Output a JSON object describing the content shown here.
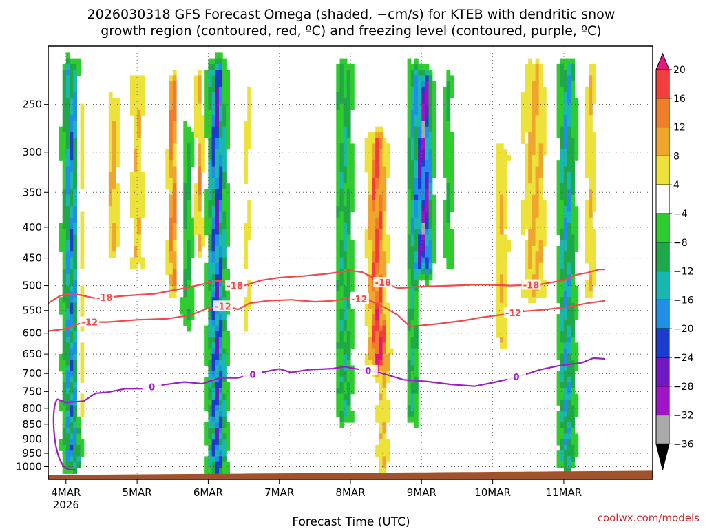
{
  "chart_data": {
    "type": "heatmap",
    "title_line1": "2026030318 GFS Forecast Omega (shaded, −cm/s) for KTEB with dendritic snow",
    "title_line2": "growth region (contoured, red, ºC) and freezing level (contoured, purple, ºC)",
    "xlabel": "Forecast Time (UTC)",
    "credit": "coolwx.com/models",
    "x_range_hours": [
      0,
      204
    ],
    "x_ticks": [
      {
        "hour": 6,
        "label": "4MAR",
        "sublabel": "2026"
      },
      {
        "hour": 30,
        "label": "5MAR"
      },
      {
        "hour": 54,
        "label": "6MAR"
      },
      {
        "hour": 78,
        "label": "7MAR"
      },
      {
        "hour": 102,
        "label": "8MAR"
      },
      {
        "hour": 126,
        "label": "9MAR"
      },
      {
        "hour": 150,
        "label": "10MAR"
      },
      {
        "hour": 174,
        "label": "11MAR"
      }
    ],
    "y_axis": {
      "scale": "log",
      "pressure_range_hpa": [
        1050,
        200
      ],
      "ticks": [
        "250",
        "300",
        "350",
        "400",
        "450",
        "500",
        "550",
        "600",
        "650",
        "700",
        "750",
        "800",
        "850",
        "900",
        "950",
        "1000"
      ]
    },
    "colorbar": {
      "labels": [
        "20",
        "16",
        "12",
        "8",
        "4",
        "−4",
        "−8",
        "−12",
        "−16",
        "−20",
        "−24",
        "−28",
        "−32",
        "−36"
      ],
      "bins": [
        {
          "min": 20,
          "color": "#e8157d"
        },
        {
          "min": 16,
          "max": 20,
          "color": "#f43d3d"
        },
        {
          "min": 12,
          "max": 16,
          "color": "#f07d2a"
        },
        {
          "min": 8,
          "max": 12,
          "color": "#f0a52d"
        },
        {
          "min": 4,
          "max": 8,
          "color": "#ece23a"
        },
        {
          "min": -4,
          "max": 4,
          "color": "#ffffff"
        },
        {
          "min": -8,
          "max": -4,
          "color": "#2ecc2e"
        },
        {
          "min": -12,
          "max": -8,
          "color": "#1fa847"
        },
        {
          "min": -16,
          "max": -12,
          "color": "#18b8b0"
        },
        {
          "min": -20,
          "max": -16,
          "color": "#1f8fe8"
        },
        {
          "min": -24,
          "max": -20,
          "color": "#1c3ccf"
        },
        {
          "min": -28,
          "max": -24,
          "color": "#7018c4"
        },
        {
          "min": -32,
          "max": -28,
          "color": "#a014c8"
        },
        {
          "min": -36,
          "max": -32,
          "color": "#aaaaaa"
        },
        {
          "max": -36,
          "color": "#000000"
        }
      ]
    },
    "colors": {
      "ground": "#a0522d",
      "dgz_contour": "#f24a4a",
      "freezing_contour": "#9c1ec8",
      "credit": "#d0262b"
    },
    "contours": {
      "minus18_c": {
        "label": "-18",
        "points": [
          [
            0,
            535
          ],
          [
            4,
            520
          ],
          [
            8,
            515
          ],
          [
            16,
            525
          ],
          [
            26,
            520
          ],
          [
            36,
            516
          ],
          [
            46,
            505
          ],
          [
            54,
            495
          ],
          [
            58,
            490
          ],
          [
            62,
            500
          ],
          [
            66,
            500
          ],
          [
            72,
            490
          ],
          [
            78,
            485
          ],
          [
            86,
            482
          ],
          [
            94,
            478
          ],
          [
            102,
            472
          ],
          [
            106,
            475
          ],
          [
            112,
            492
          ],
          [
            118,
            505
          ],
          [
            126,
            502
          ],
          [
            136,
            500
          ],
          [
            146,
            498
          ],
          [
            156,
            500
          ],
          [
            166,
            498
          ],
          [
            174,
            490
          ],
          [
            178,
            480
          ],
          [
            182,
            476
          ],
          [
            186,
            470
          ],
          [
            188,
            470
          ]
        ],
        "label_hours": [
          19,
          63,
          113,
          163
        ]
      },
      "minus12_c": {
        "label": "-12",
        "points": [
          [
            0,
            595
          ],
          [
            6,
            590
          ],
          [
            12,
            575
          ],
          [
            20,
            575
          ],
          [
            30,
            570
          ],
          [
            40,
            568
          ],
          [
            48,
            560
          ],
          [
            54,
            545
          ],
          [
            60,
            540
          ],
          [
            64,
            548
          ],
          [
            68,
            535
          ],
          [
            74,
            530
          ],
          [
            82,
            528
          ],
          [
            90,
            532
          ],
          [
            96,
            530
          ],
          [
            102,
            525
          ],
          [
            108,
            528
          ],
          [
            114,
            545
          ],
          [
            118,
            560
          ],
          [
            122,
            585
          ],
          [
            130,
            580
          ],
          [
            140,
            572
          ],
          [
            146,
            565
          ],
          [
            152,
            560
          ],
          [
            160,
            552
          ],
          [
            168,
            548
          ],
          [
            176,
            542
          ],
          [
            182,
            535
          ],
          [
            188,
            530
          ]
        ],
        "label_hours": [
          14,
          59,
          105,
          157
        ]
      },
      "zero_c": {
        "label": "0",
        "points": [
          [
            3,
            772
          ],
          [
            6,
            782
          ],
          [
            12,
            778
          ],
          [
            16,
            755
          ],
          [
            20,
            752
          ],
          [
            26,
            742
          ],
          [
            32,
            742
          ],
          [
            38,
            732
          ],
          [
            46,
            723
          ],
          [
            52,
            728
          ],
          [
            58,
            712
          ],
          [
            64,
            712
          ],
          [
            70,
            700
          ],
          [
            78,
            688
          ],
          [
            82,
            697
          ],
          [
            88,
            690
          ],
          [
            96,
            687
          ],
          [
            100,
            682
          ],
          [
            104,
            688
          ],
          [
            108,
            692
          ],
          [
            112,
            698
          ],
          [
            120,
            717
          ],
          [
            128,
            722
          ],
          [
            136,
            730
          ],
          [
            144,
            735
          ],
          [
            150,
            725
          ],
          [
            156,
            714
          ],
          [
            162,
            700
          ],
          [
            166,
            690
          ],
          [
            172,
            680
          ],
          [
            180,
            672
          ],
          [
            184,
            660
          ],
          [
            188,
            662
          ]
        ],
        "label_hours": [
          35,
          69,
          108,
          158
        ]
      }
    },
    "omega_features": [
      {
        "hour": 8,
        "p_top": 220,
        "p_bot": 950,
        "width_h": 3.0,
        "peak": -22
      },
      {
        "hour": 11,
        "p_top": 230,
        "p_bot": 800,
        "width_h": 1.6,
        "peak": 14
      },
      {
        "hour": 22,
        "p_top": 250,
        "p_bot": 420,
        "width_h": 2.0,
        "peak": 12
      },
      {
        "hour": 30,
        "p_top": 230,
        "p_bot": 450,
        "width_h": 2.5,
        "peak": 9
      },
      {
        "hour": 42,
        "p_top": 230,
        "p_bot": 480,
        "width_h": 1.6,
        "peak": 17
      },
      {
        "hour": 51,
        "p_top": 230,
        "p_bot": 420,
        "width_h": 1.5,
        "peak": 14
      },
      {
        "hour": 57,
        "p_top": 220,
        "p_bot": 975,
        "width_h": 3.0,
        "peak": -27
      },
      {
        "hour": 47,
        "p_top": 280,
        "p_bot": 550,
        "width_h": 2.0,
        "peak": -12
      },
      {
        "hour": 67,
        "p_top": 220,
        "p_bot": 600,
        "width_h": 2.2,
        "peak": 6
      },
      {
        "hour": 100,
        "p_top": 220,
        "p_bot": 800,
        "width_h": 3.0,
        "peak": -14
      },
      {
        "hour": 111,
        "p_top": 290,
        "p_bot": 650,
        "width_h": 3.0,
        "peak": 20
      },
      {
        "hour": 113,
        "p_top": 600,
        "p_bot": 980,
        "width_h": 2.5,
        "peak": 9
      },
      {
        "hour": 127,
        "p_top": 230,
        "p_bot": 450,
        "width_h": 2.6,
        "peak": -33
      },
      {
        "hour": 123,
        "p_top": 220,
        "p_bot": 800,
        "width_h": 2.0,
        "peak": -14
      },
      {
        "hour": 135,
        "p_top": 230,
        "p_bot": 440,
        "width_h": 2.0,
        "peak": -10
      },
      {
        "hour": 153,
        "p_top": 300,
        "p_bot": 600,
        "width_h": 2.5,
        "peak": 10
      },
      {
        "hour": 164,
        "p_top": 220,
        "p_bot": 500,
        "width_h": 4.0,
        "peak": 12
      },
      {
        "hour": 175,
        "p_top": 220,
        "p_bot": 960,
        "width_h": 3.0,
        "peak": -18
      },
      {
        "hour": 183,
        "p_top": 220,
        "p_bot": 500,
        "width_h": 2.5,
        "peak": 9
      }
    ]
  }
}
